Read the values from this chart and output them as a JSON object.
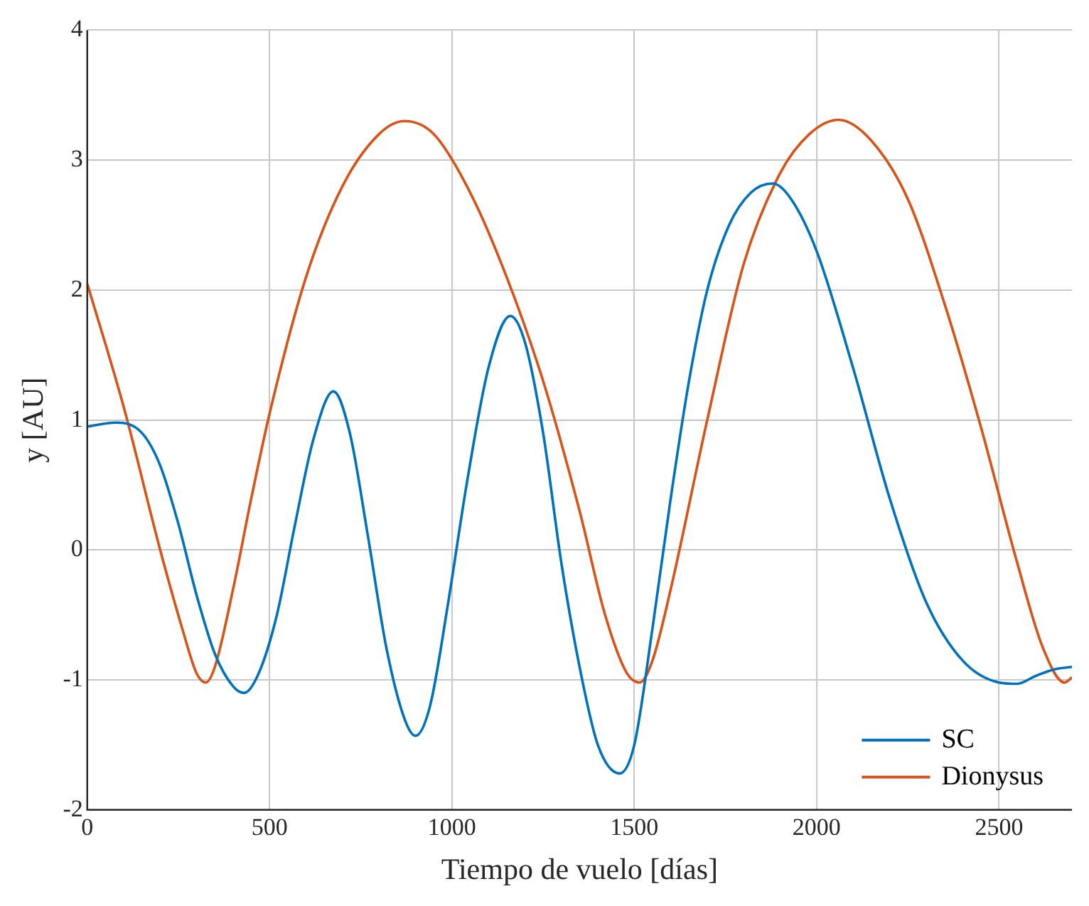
{
  "chart_data": {
    "type": "line",
    "xlabel": "Tiempo de vuelo [días]",
    "ylabel": "y [AU]",
    "xlim": [
      0,
      2700
    ],
    "xticks": [
      0,
      500,
      1000,
      1500,
      2000,
      2500
    ],
    "ylim": [
      -2,
      4
    ],
    "yticks": [
      -2,
      -1,
      0,
      1,
      2,
      3,
      4
    ],
    "grid": true,
    "legend": "bottom right",
    "marker": "none",
    "line_style": "solid",
    "series": [
      {
        "name": "SC",
        "color": "#0072bd",
        "x": [
          0,
          80,
          150,
          200,
          250,
          300,
          350,
          400,
          430,
          470,
          520,
          570,
          620,
          675,
          720,
          770,
          820,
          870,
          900,
          940,
          990,
          1040,
          1100,
          1160,
          1200,
          1250,
          1300,
          1350,
          1400,
          1460,
          1500,
          1550,
          1600,
          1650,
          1700,
          1760,
          1820,
          1880,
          1930,
          2000,
          2100,
          2200,
          2300,
          2400,
          2500,
          2550,
          2600,
          2650,
          2700
        ],
        "values": [
          0.95,
          0.98,
          0.9,
          0.65,
          0.2,
          -0.35,
          -0.8,
          -1.05,
          -1.1,
          -0.95,
          -0.5,
          0.2,
          0.85,
          1.22,
          0.9,
          0.1,
          -0.75,
          -1.3,
          -1.43,
          -1.2,
          -0.4,
          0.5,
          1.4,
          1.8,
          1.6,
          0.9,
          -0.1,
          -0.9,
          -1.5,
          -1.72,
          -1.5,
          -0.6,
          0.4,
          1.3,
          2.0,
          2.5,
          2.75,
          2.82,
          2.7,
          2.3,
          1.4,
          0.4,
          -0.4,
          -0.85,
          -1.02,
          -1.03,
          -0.97,
          -0.92,
          -0.9
        ]
      },
      {
        "name": "Dionysus",
        "color": "#d95319",
        "x": [
          0,
          100,
          200,
          260,
          300,
          325,
          350,
          400,
          450,
          500,
          600,
          700,
          800,
          870,
          950,
          1050,
          1150,
          1250,
          1350,
          1420,
          1480,
          1515,
          1550,
          1600,
          1700,
          1800,
          1900,
          1980,
          2060,
          2150,
          2250,
          2350,
          2450,
          2550,
          2620,
          2680,
          2700
        ],
        "values": [
          2.05,
          1.1,
          0.0,
          -0.6,
          -0.95,
          -1.02,
          -0.9,
          -0.3,
          0.4,
          1.05,
          2.1,
          2.8,
          3.2,
          3.3,
          3.2,
          2.75,
          2.1,
          1.3,
          0.3,
          -0.5,
          -0.95,
          -1.02,
          -0.85,
          -0.3,
          1.0,
          2.2,
          2.9,
          3.2,
          3.31,
          3.15,
          2.7,
          1.9,
          0.95,
          -0.1,
          -0.75,
          -1.02,
          -0.98
        ]
      }
    ]
  }
}
